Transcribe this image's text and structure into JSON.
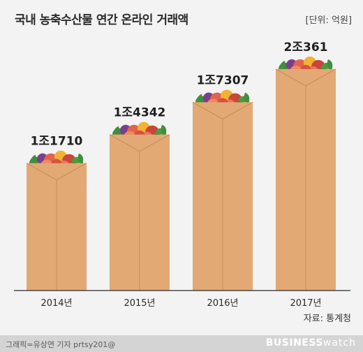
{
  "header": {
    "title": "국내 농축수산물 연간 온라인 거래액",
    "unit": "[단위: 억원]"
  },
  "source": "자료: 통계청",
  "footer": {
    "credit": "그래픽=유상연 기자 prtsy201@",
    "logo_main": "BUSINESS",
    "logo_sub": "watch"
  },
  "colors": {
    "bag": "#e2a974",
    "bag_edge": "#c98f5a",
    "background": "#f3f3f3",
    "axis": "#2b2b2b"
  },
  "chart_data": {
    "type": "bar",
    "categories": [
      "2014년",
      "2015년",
      "2016년",
      "2017년"
    ],
    "values": [
      11710,
      14342,
      17307,
      20361
    ],
    "data_labels": [
      "1조1710",
      "1조4342",
      "1조7307",
      "2조361"
    ],
    "ylabel": "",
    "xlabel": "",
    "ylim": [
      0,
      22600
    ],
    "grid": false,
    "legend": "none",
    "mark_style": "paper-grocery-bag"
  }
}
